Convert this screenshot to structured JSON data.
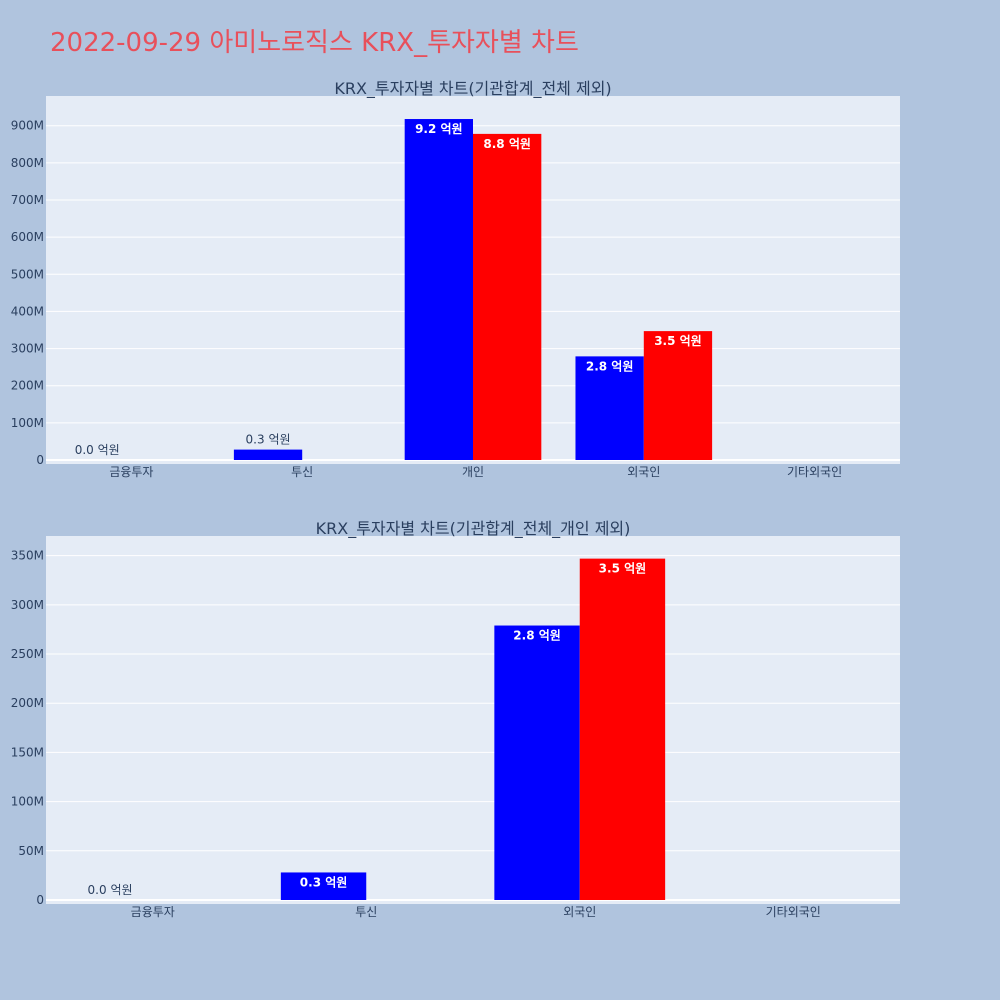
{
  "page": {
    "title": "2022-09-29 아미노로직스 KRX_투자자별 차트"
  },
  "colors": {
    "background": "#b0c4de",
    "plot_background": "#e5ecf6",
    "series_a": "#0000ff",
    "series_b": "#ff0000",
    "title": "#e8505b"
  },
  "chart_data": [
    {
      "type": "bar",
      "title": "KRX_투자자별 차트(기관합계_전체 제외)",
      "categories": [
        "금융투자",
        "투신",
        "개인",
        "외국인",
        "기타외국인"
      ],
      "ylim": [
        0,
        980000000
      ],
      "yticks": [
        0,
        100000000,
        200000000,
        300000000,
        400000000,
        500000000,
        600000000,
        700000000,
        800000000,
        900000000
      ],
      "ytick_labels": [
        "0",
        "100M",
        "200M",
        "300M",
        "400M",
        "500M",
        "600M",
        "700M",
        "800M",
        "900M"
      ],
      "grid": true,
      "series": [
        {
          "color": "#0000ff",
          "values": [
            0,
            28000000,
            918000000,
            279000000,
            null
          ],
          "labels": [
            "0.0 억원",
            "0.3 억원",
            "9.2 억원",
            "2.8 억원",
            null
          ]
        },
        {
          "color": "#ff0000",
          "values": [
            null,
            null,
            878000000,
            347000000,
            null
          ],
          "labels": [
            null,
            null,
            "8.8 억원",
            "3.5 억원",
            null
          ]
        }
      ]
    },
    {
      "type": "bar",
      "title": "KRX_투자자별 차트(기관합계_전체_개인 제외)",
      "categories": [
        "금융투자",
        "투신",
        "외국인",
        "기타외국인"
      ],
      "ylim": [
        0,
        370000000
      ],
      "yticks": [
        0,
        50000000,
        100000000,
        150000000,
        200000000,
        250000000,
        300000000,
        350000000
      ],
      "ytick_labels": [
        "0",
        "50M",
        "100M",
        "150M",
        "200M",
        "250M",
        "300M",
        "350M"
      ],
      "grid": true,
      "series": [
        {
          "color": "#0000ff",
          "values": [
            0,
            28000000,
            279000000,
            null
          ],
          "labels": [
            "0.0 억원",
            "0.3 억원",
            "2.8 억원",
            null
          ]
        },
        {
          "color": "#ff0000",
          "values": [
            null,
            null,
            347000000,
            null
          ],
          "labels": [
            null,
            null,
            "3.5 억원",
            null
          ]
        }
      ]
    }
  ]
}
